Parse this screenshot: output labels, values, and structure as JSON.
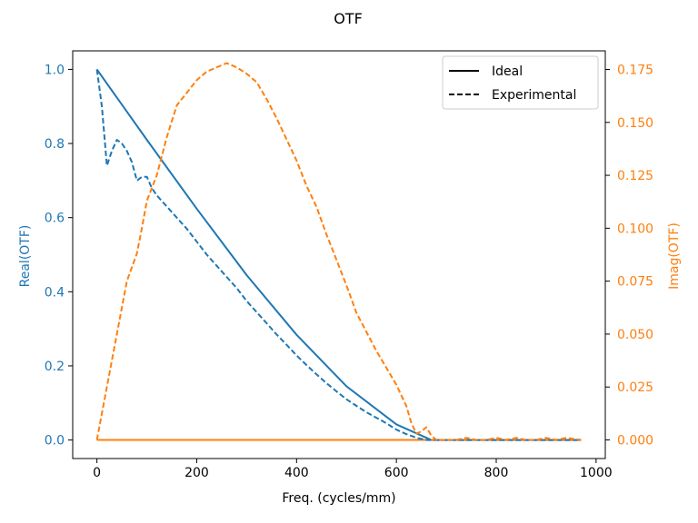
{
  "chart_data": {
    "type": "line",
    "title": "OTF",
    "xlabel": "Freq. (cycles/mm)",
    "ylabel_left": "Real(OTF)",
    "ylabel_right": "Imag(OTF)",
    "xlim": [
      -48.5,
      1018.5
    ],
    "ylim_left": [
      -0.05,
      1.05
    ],
    "ylim_right": [
      -0.0088,
      0.1838
    ],
    "x_ticks": [
      0,
      200,
      400,
      600,
      800,
      1000
    ],
    "y_ticks_left": [
      0.0,
      0.2,
      0.4,
      0.6,
      0.8,
      1.0
    ],
    "y_ticks_right": [
      0.0,
      0.025,
      0.05,
      0.075,
      0.1,
      0.125,
      0.15,
      0.175
    ],
    "x_tick_labels": [
      "0",
      "200",
      "400",
      "600",
      "800",
      "1000"
    ],
    "y_tick_labels_left": [
      "0.0",
      "0.2",
      "0.4",
      "0.6",
      "0.8",
      "1.0"
    ],
    "y_tick_labels_right": [
      "0.000",
      "0.025",
      "0.050",
      "0.075",
      "0.100",
      "0.125",
      "0.150",
      "0.175"
    ],
    "legend": {
      "placement": "top-right",
      "entries": [
        {
          "label": "Ideal",
          "linestyle": "solid"
        },
        {
          "label": "Experimental",
          "linestyle": "dashed"
        }
      ]
    },
    "colors": {
      "real": "#1f77b4",
      "imag": "#ff7f0e"
    },
    "series": [
      {
        "axis": "left",
        "part": "real",
        "linestyle": "solid",
        "x": [
          0,
          100,
          200,
          300,
          400,
          500,
          600,
          670,
          970
        ],
        "y": [
          1.0,
          0.81,
          0.624,
          0.445,
          0.284,
          0.145,
          0.042,
          0.0,
          0.0
        ]
      },
      {
        "axis": "right",
        "part": "imag",
        "linestyle": "solid",
        "x": [
          0,
          970
        ],
        "y": [
          0.0,
          0.0
        ]
      },
      {
        "axis": "left",
        "part": "real",
        "linestyle": "dashed",
        "x": [
          0,
          10,
          20,
          30,
          40,
          50,
          60,
          70,
          80,
          90,
          100,
          110,
          120,
          140,
          160,
          180,
          200,
          220,
          240,
          260,
          280,
          300,
          320,
          340,
          360,
          380,
          400,
          420,
          440,
          460,
          480,
          500,
          520,
          540,
          560,
          580,
          600,
          620,
          640,
          660,
          680,
          700,
          970
        ],
        "y": [
          1.0,
          0.9,
          0.74,
          0.78,
          0.81,
          0.8,
          0.78,
          0.75,
          0.7,
          0.71,
          0.71,
          0.68,
          0.66,
          0.63,
          0.6,
          0.57,
          0.535,
          0.5,
          0.47,
          0.44,
          0.41,
          0.375,
          0.345,
          0.315,
          0.285,
          0.257,
          0.228,
          0.202,
          0.177,
          0.153,
          0.131,
          0.11,
          0.092,
          0.075,
          0.06,
          0.045,
          0.028,
          0.016,
          0.006,
          0.0,
          0.0,
          0.0,
          0.0
        ]
      },
      {
        "axis": "right",
        "part": "imag",
        "linestyle": "dashed",
        "x": [
          0,
          20,
          40,
          60,
          80,
          90,
          100,
          120,
          140,
          160,
          180,
          200,
          220,
          240,
          260,
          280,
          300,
          320,
          340,
          360,
          380,
          400,
          420,
          440,
          460,
          480,
          500,
          520,
          540,
          560,
          580,
          600,
          620,
          630,
          640,
          650,
          660,
          670,
          680,
          700,
          720,
          740,
          760,
          780,
          800,
          820,
          840,
          860,
          880,
          900,
          920,
          940,
          970
        ],
        "y": [
          0.0,
          0.025,
          0.05,
          0.075,
          0.088,
          0.1,
          0.113,
          0.125,
          0.143,
          0.158,
          0.164,
          0.17,
          0.174,
          0.176,
          0.178,
          0.176,
          0.173,
          0.169,
          0.161,
          0.152,
          0.142,
          0.132,
          0.12,
          0.11,
          0.097,
          0.085,
          0.073,
          0.06,
          0.051,
          0.042,
          0.034,
          0.026,
          0.016,
          0.008,
          0.003,
          0.004,
          0.006,
          0.002,
          0.0,
          0.0,
          0.0,
          0.001,
          0.0,
          0.0,
          0.001,
          0.0,
          0.001,
          0.0,
          0.0,
          0.001,
          0.0,
          0.001,
          0.0
        ]
      }
    ]
  }
}
